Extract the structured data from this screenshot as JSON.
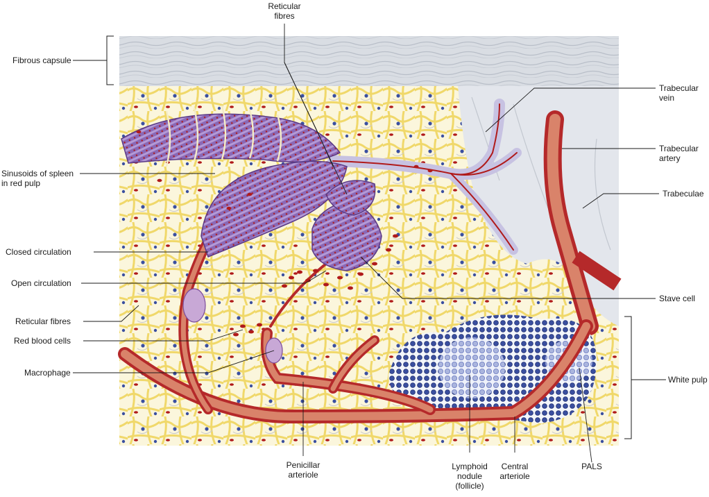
{
  "labels": {
    "reticular_fibres_top": [
      "Reticular",
      "fibres"
    ],
    "fibrous_capsule": "Fibrous capsule",
    "sinusoids": [
      "Sinusoids of spleen",
      "in red pulp"
    ],
    "closed_circulation": "Closed circulation",
    "open_circulation": "Open circulation",
    "reticular_fibres_left": "Reticular fibres",
    "red_blood_cells": "Red blood cells",
    "macrophage": "Macrophage",
    "trabecular_vein": [
      "Trabecular",
      "vein"
    ],
    "trabecular_artery": [
      "Trabecular",
      "artery"
    ],
    "trabeculae": "Trabeculae",
    "stave_cell": "Stave cell",
    "white_pulp": "White pulp",
    "penicillar_arteriole": [
      "Penicillar",
      "arteriole"
    ],
    "lymphoid_nodule": [
      "Lymphoid",
      "nodule",
      "(follicle)"
    ],
    "central_arteriole": [
      "Central",
      "arteriole"
    ],
    "pals": "PALS"
  },
  "colors": {
    "capsule": "#d9dde3",
    "red_pulp_background": "#fbf6dc",
    "reticular_network": "#f2dc74",
    "artery": "#b5292a",
    "artery_fill": "#d9836a",
    "sinusoid": "#7a55a3",
    "sinusoid_light": "#a98ccc",
    "lymphocyte": "#3a4fa0",
    "red_blood_cell": "#b01a1a",
    "trabecula": "#e3e6ec"
  }
}
